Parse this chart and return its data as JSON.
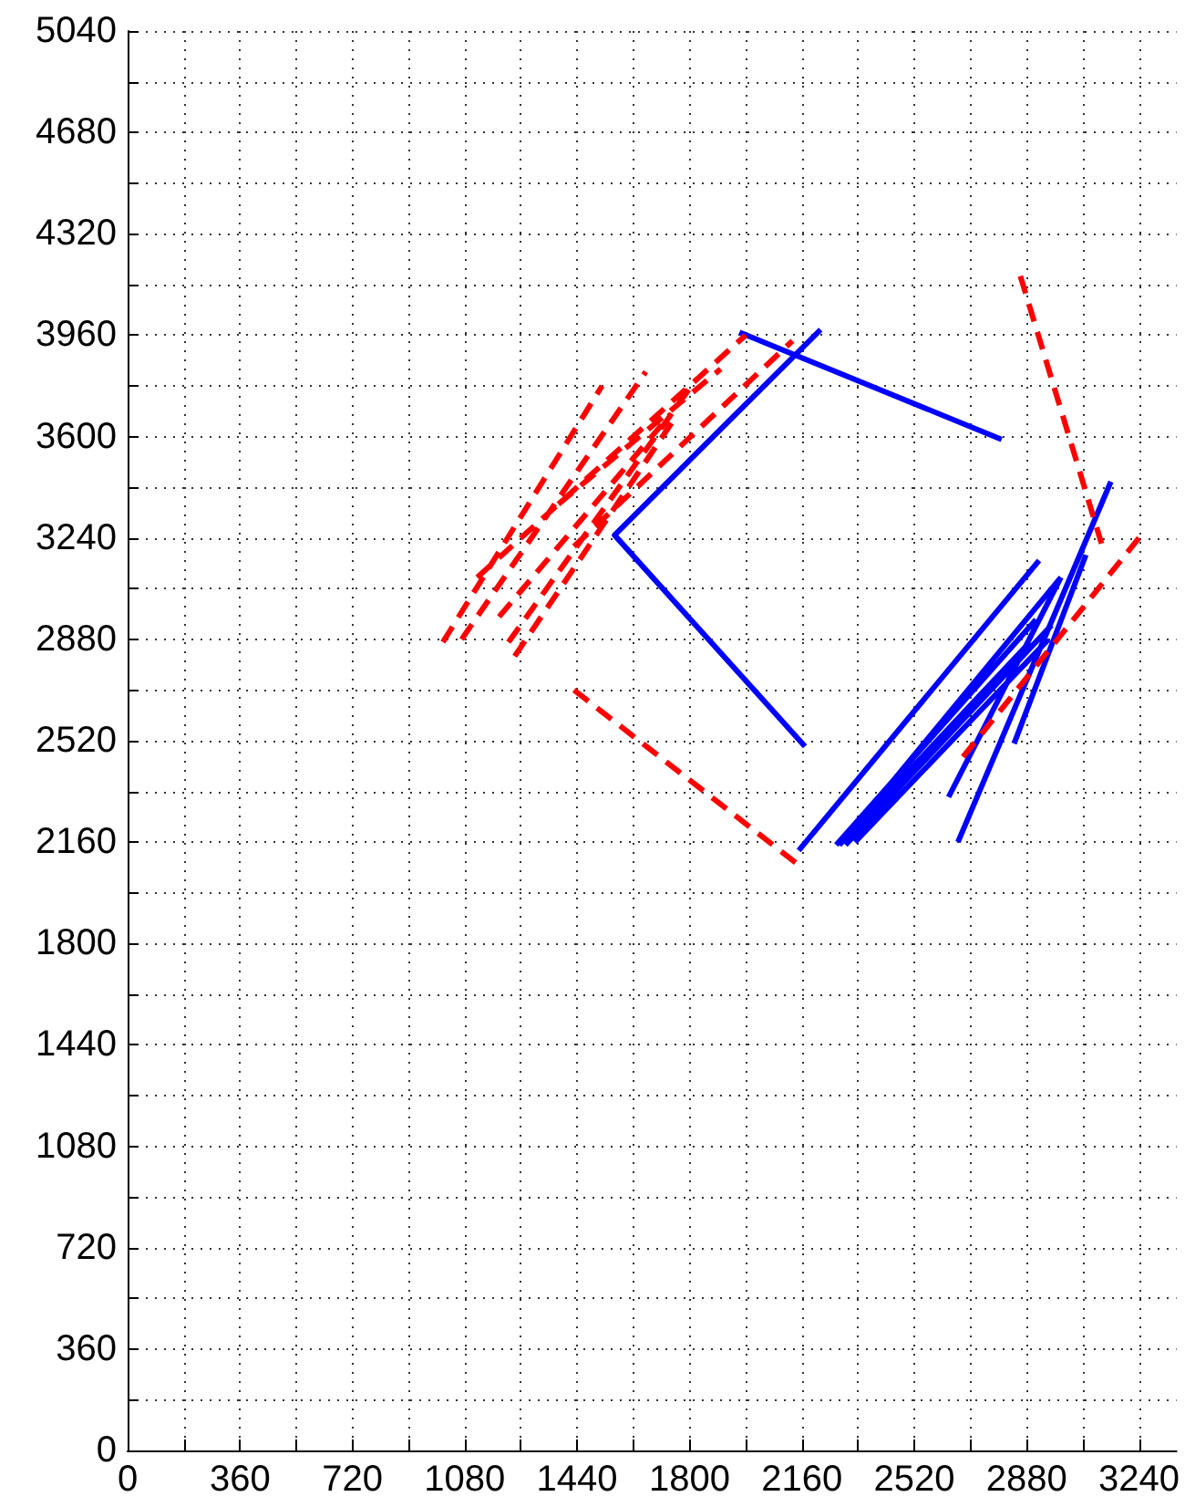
{
  "chart_data": {
    "type": "line",
    "xlim": [
      0,
      3360
    ],
    "ylim": [
      0,
      5040
    ],
    "xticks": [
      0,
      {
        "value": 180,
        "label": null
      },
      360,
      {
        "value": 540,
        "label": null
      },
      720,
      {
        "value": 900,
        "label": null
      },
      1080,
      {
        "value": 1260,
        "label": null
      },
      1440,
      {
        "value": 1620,
        "label": null
      },
      1800,
      {
        "value": 1980,
        "label": null
      },
      2160,
      {
        "value": 2340,
        "label": null
      },
      2520,
      {
        "value": 2700,
        "label": null
      },
      2880,
      {
        "value": 3060,
        "label": null
      },
      3240
    ],
    "yticks": [
      0,
      {
        "value": 180,
        "label": null
      },
      360,
      {
        "value": 540,
        "label": null
      },
      720,
      {
        "value": 900,
        "label": null
      },
      1080,
      {
        "value": 1260,
        "label": null
      },
      1440,
      {
        "value": 1620,
        "label": null
      },
      1800,
      {
        "value": 1980,
        "label": null
      },
      2160,
      {
        "value": 2340,
        "label": null
      },
      2520,
      {
        "value": 2700,
        "label": null
      },
      2880,
      {
        "value": 3060,
        "label": null
      },
      3240,
      {
        "value": 3420,
        "label": null
      },
      3600,
      {
        "value": 3780,
        "label": null
      },
      3960,
      {
        "value": 4140,
        "label": null
      },
      4320,
      {
        "value": 4500,
        "label": null
      },
      4680,
      {
        "value": 4860,
        "label": null
      },
      5040
    ],
    "grid": true,
    "marker": "none",
    "series": [
      {
        "color": "#0000ff",
        "line_style": "solid",
        "x": [
          2800,
          1960,
          null,
          2220,
          1560,
          2170,
          null,
          2150,
          2920,
          null,
          2270,
          2910,
          null,
          2290,
          2990,
          null,
          2330,
          2950,
          null,
          2300,
          2960,
          null,
          2660,
          3150,
          null,
          2630,
          2990,
          null,
          2840,
          3070,
          null,
          2280,
          2890
        ],
        "values": [
          3590,
          3970,
          null,
          3980,
          3250,
          2500,
          null,
          2130,
          3160,
          null,
          2150,
          2950,
          null,
          2160,
          3100,
          null,
          2160,
          2880,
          null,
          2150,
          2930,
          null,
          2160,
          3440,
          null,
          2320,
          3100,
          null,
          2510,
          3180,
          null,
          2150,
          2870
        ]
      },
      {
        "color": "#ff0000",
        "line_style": "dashed",
        "x": [
          1430,
          2160,
          null,
          2860,
          3120,
          null,
          3240,
          2660,
          null,
          1010,
          1520,
          null,
          1070,
          1660,
          null,
          1240,
          1750,
          null,
          1220,
          1800,
          null,
          1120,
          1980,
          null,
          1430,
          2130,
          null,
          1380,
          1900,
          null,
          1190,
          1740
        ],
        "values": [
          2700,
          2070,
          null,
          4170,
          3220,
          null,
          3240,
          2440,
          null,
          2870,
          3780,
          null,
          2880,
          3830,
          null,
          2820,
          3660,
          null,
          2870,
          3770,
          null,
          3100,
          3960,
          null,
          3210,
          3940,
          null,
          3360,
          3840,
          null,
          2960,
          3680
        ]
      }
    ]
  }
}
